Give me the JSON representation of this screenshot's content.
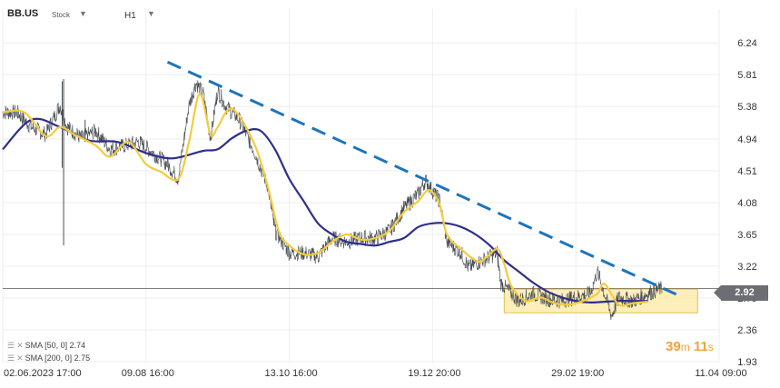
{
  "header": {
    "symbol": "BB.US",
    "instrument_type": "Stock",
    "timeframe": "H1"
  },
  "legend": {
    "sma50": "SMA [50, 0] 2.74",
    "sma200": "SMA [200, 0] 2.75"
  },
  "current_price": "2.92",
  "timer": {
    "minutes": "39",
    "m": "m",
    "seconds": "11",
    "s": "s"
  },
  "colors": {
    "price": "#4a4f55",
    "sma50": "#f2cc3e",
    "sma200": "#2f2f8a",
    "trendline": "#1c75bc",
    "zone_fill": "#fbeaa3",
    "zone_border": "#e2c24a"
  },
  "chart_data": {
    "type": "line",
    "ylim": [
      1.93,
      6.45
    ],
    "y_ticks": [
      "6.24",
      "5.81",
      "5.38",
      "4.94",
      "4.51",
      "4.08",
      "3.65",
      "3.22",
      "2.79",
      "2.36",
      "1.93"
    ],
    "x_ticks": [
      "02.06.2023  17:00",
      "09.08  16:00",
      "13.10  16:00",
      "19.12  20:00",
      "29.02  19:00",
      "11.04  09:00"
    ],
    "x_positions": [
      0.0,
      0.2,
      0.4,
      0.6,
      0.8,
      1.0
    ],
    "x_end": 0.92,
    "series": [
      {
        "name": "",
        "key": "price",
        "points": [
          [
            0.0,
            5.3
          ],
          [
            0.02,
            5.3
          ],
          [
            0.04,
            5.1
          ],
          [
            0.06,
            5.0
          ],
          [
            0.08,
            5.4
          ],
          [
            0.09,
            5.1
          ],
          [
            0.11,
            4.95
          ],
          [
            0.13,
            5.05
          ],
          [
            0.15,
            4.8
          ],
          [
            0.17,
            4.85
          ],
          [
            0.19,
            4.9
          ],
          [
            0.21,
            4.75
          ],
          [
            0.23,
            4.6
          ],
          [
            0.245,
            4.4
          ],
          [
            0.26,
            5.4
          ],
          [
            0.27,
            5.7
          ],
          [
            0.28,
            5.55
          ],
          [
            0.29,
            4.95
          ],
          [
            0.3,
            5.6
          ],
          [
            0.31,
            5.4
          ],
          [
            0.33,
            5.2
          ],
          [
            0.35,
            4.8
          ],
          [
            0.37,
            4.3
          ],
          [
            0.38,
            3.7
          ],
          [
            0.4,
            3.4
          ],
          [
            0.42,
            3.4
          ],
          [
            0.44,
            3.35
          ],
          [
            0.46,
            3.6
          ],
          [
            0.48,
            3.55
          ],
          [
            0.5,
            3.6
          ],
          [
            0.52,
            3.6
          ],
          [
            0.54,
            3.7
          ],
          [
            0.56,
            4.0
          ],
          [
            0.58,
            4.2
          ],
          [
            0.59,
            4.38
          ],
          [
            0.61,
            4.1
          ],
          [
            0.62,
            3.55
          ],
          [
            0.64,
            3.4
          ],
          [
            0.65,
            3.2
          ],
          [
            0.67,
            3.3
          ],
          [
            0.69,
            3.4
          ],
          [
            0.695,
            3.0
          ],
          [
            0.71,
            2.85
          ],
          [
            0.72,
            2.75
          ],
          [
            0.74,
            2.85
          ],
          [
            0.76,
            2.78
          ],
          [
            0.78,
            2.75
          ],
          [
            0.8,
            2.8
          ],
          [
            0.82,
            2.85
          ],
          [
            0.83,
            3.15
          ],
          [
            0.84,
            2.85
          ],
          [
            0.85,
            2.55
          ],
          [
            0.86,
            2.8
          ],
          [
            0.88,
            2.75
          ],
          [
            0.9,
            2.85
          ],
          [
            0.92,
            2.92
          ]
        ]
      },
      {
        "name": "SMA [50, 0]",
        "key": "sma50",
        "points": [
          [
            0.0,
            5.3
          ],
          [
            0.03,
            5.3
          ],
          [
            0.06,
            4.98
          ],
          [
            0.08,
            5.1
          ],
          [
            0.1,
            5.0
          ],
          [
            0.13,
            4.85
          ],
          [
            0.15,
            4.7
          ],
          [
            0.175,
            4.9
          ],
          [
            0.2,
            4.6
          ],
          [
            0.22,
            4.5
          ],
          [
            0.245,
            4.4
          ],
          [
            0.26,
            4.9
          ],
          [
            0.275,
            5.55
          ],
          [
            0.29,
            5.0
          ],
          [
            0.3,
            5.1
          ],
          [
            0.32,
            5.35
          ],
          [
            0.35,
            4.9
          ],
          [
            0.37,
            4.3
          ],
          [
            0.385,
            3.7
          ],
          [
            0.4,
            3.5
          ],
          [
            0.42,
            3.38
          ],
          [
            0.44,
            3.4
          ],
          [
            0.46,
            3.55
          ],
          [
            0.48,
            3.65
          ],
          [
            0.5,
            3.58
          ],
          [
            0.52,
            3.6
          ],
          [
            0.54,
            3.7
          ],
          [
            0.56,
            3.95
          ],
          [
            0.58,
            4.1
          ],
          [
            0.595,
            4.25
          ],
          [
            0.61,
            4.05
          ],
          [
            0.62,
            3.65
          ],
          [
            0.64,
            3.45
          ],
          [
            0.66,
            3.3
          ],
          [
            0.67,
            3.3
          ],
          [
            0.69,
            3.45
          ],
          [
            0.7,
            3.25
          ],
          [
            0.71,
            2.95
          ],
          [
            0.73,
            2.75
          ],
          [
            0.75,
            2.8
          ],
          [
            0.77,
            2.72
          ],
          [
            0.79,
            2.7
          ],
          [
            0.81,
            2.75
          ],
          [
            0.83,
            2.85
          ],
          [
            0.84,
            2.98
          ],
          [
            0.86,
            2.7
          ],
          [
            0.88,
            2.72
          ],
          [
            0.9,
            2.74
          ]
        ]
      },
      {
        "name": "SMA [200, 0]",
        "key": "sma200",
        "points": [
          [
            0.0,
            4.8
          ],
          [
            0.04,
            5.2
          ],
          [
            0.08,
            5.1
          ],
          [
            0.12,
            4.92
          ],
          [
            0.16,
            4.9
          ],
          [
            0.2,
            4.75
          ],
          [
            0.23,
            4.68
          ],
          [
            0.25,
            4.7
          ],
          [
            0.28,
            4.78
          ],
          [
            0.3,
            4.8
          ],
          [
            0.32,
            4.95
          ],
          [
            0.34,
            5.05
          ],
          [
            0.36,
            5.05
          ],
          [
            0.38,
            4.8
          ],
          [
            0.4,
            4.4
          ],
          [
            0.42,
            4.1
          ],
          [
            0.44,
            3.8
          ],
          [
            0.46,
            3.65
          ],
          [
            0.48,
            3.55
          ],
          [
            0.5,
            3.52
          ],
          [
            0.52,
            3.5
          ],
          [
            0.54,
            3.55
          ],
          [
            0.56,
            3.6
          ],
          [
            0.58,
            3.75
          ],
          [
            0.6,
            3.8
          ],
          [
            0.62,
            3.8
          ],
          [
            0.64,
            3.75
          ],
          [
            0.66,
            3.65
          ],
          [
            0.68,
            3.5
          ],
          [
            0.7,
            3.3
          ],
          [
            0.72,
            3.15
          ],
          [
            0.74,
            3.0
          ],
          [
            0.76,
            2.88
          ],
          [
            0.78,
            2.8
          ],
          [
            0.8,
            2.75
          ],
          [
            0.82,
            2.73
          ],
          [
            0.84,
            2.74
          ],
          [
            0.86,
            2.75
          ],
          [
            0.88,
            2.75
          ],
          [
            0.9,
            2.75
          ]
        ]
      }
    ],
    "trendline": [
      [
        0.23,
        5.98
      ],
      [
        0.94,
        2.84
      ]
    ],
    "price_line": 2.92,
    "support_zone": {
      "x": [
        0.7,
        0.97
      ],
      "y": [
        2.59,
        2.91
      ]
    }
  }
}
